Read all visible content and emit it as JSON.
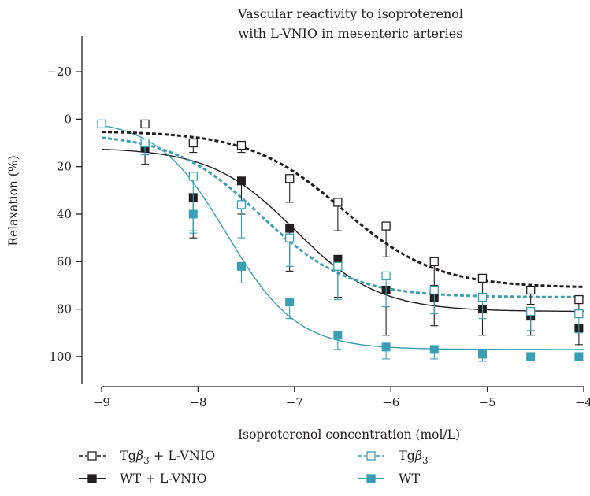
{
  "chart_data": {
    "type": "line",
    "title": [
      "Vascular reactivity to isoproterenol",
      "with L-VNIO in mesenteric arteries"
    ],
    "xlabel": "Isoproterenol concentration (mol/L)",
    "ylabel": "Relaxation (%)",
    "xlim": [
      -9,
      -4
    ],
    "ylim": [
      -25,
      105
    ],
    "y_inverted": true,
    "xticks": [
      -9,
      -8,
      -7,
      -6,
      -5,
      -4
    ],
    "yticks": [
      -20,
      0,
      20,
      40,
      60,
      80,
      100
    ],
    "xtick_labels": [
      "−9",
      "−8",
      "−7",
      "−6",
      "−5",
      "−4"
    ],
    "ytick_labels": [
      "−20",
      "0",
      "20",
      "40",
      "60",
      "80",
      "100"
    ],
    "grid": false,
    "legend_position": "bottom",
    "series": [
      {
        "name": "Tgβ3 + L-VNIO",
        "legend_main": "Tg",
        "legend_greek": "β",
        "legend_sub": "3",
        "legend_tail": " + L-VNIO",
        "color": "#231f20",
        "marker": "open-square",
        "line": "dashed",
        "x": [
          -8.55,
          -8.05,
          -7.55,
          -7.05,
          -6.55,
          -6.05,
          -5.55,
          -5.05,
          -4.55,
          -4.05
        ],
        "y": [
          2,
          10,
          11,
          25,
          35,
          45,
          60,
          67,
          72,
          76
        ],
        "err": [
          0,
          4,
          3,
          10,
          12,
          13,
          10,
          8,
          6,
          6
        ],
        "fit": {
          "bottom": 5,
          "top": 71,
          "logEC50": -6.5,
          "hill": 0.9
        }
      },
      {
        "name": "WT + L-VNIO",
        "color": "#231f20",
        "marker": "filled-square",
        "line": "solid",
        "x": [
          -8.55,
          -8.05,
          -7.55,
          -7.05,
          -6.55,
          -6.05,
          -5.55,
          -5.05,
          -4.55,
          -4.05
        ],
        "y": [
          12,
          33,
          26,
          46,
          59,
          72,
          75,
          80,
          83,
          88
        ],
        "err": [
          7,
          17,
          14,
          18,
          16,
          19,
          12,
          11,
          8,
          7
        ],
        "fit": {
          "bottom": 12,
          "top": 81,
          "logEC50": -7.0,
          "hill": 1.0
        }
      },
      {
        "name": "Tgβ3",
        "legend_main": "Tg",
        "legend_greek": "β",
        "legend_sub": "3",
        "legend_tail": "",
        "color": "#3a9fb3",
        "marker": "open-square",
        "line": "dashed",
        "x": [
          -9.0,
          -8.55,
          -8.05,
          -7.55,
          -7.05,
          -6.55,
          -6.05,
          -5.55,
          -5.05,
          -4.55,
          -4.05
        ],
        "y": [
          2,
          10,
          24,
          36,
          50,
          62,
          66,
          72,
          75,
          81,
          82
        ],
        "err": [
          0,
          5,
          23,
          14,
          12,
          14,
          13,
          10,
          9,
          8,
          8
        ],
        "fit": {
          "bottom": 6,
          "top": 75,
          "logEC50": -7.35,
          "hill": 0.95
        }
      },
      {
        "name": "WT",
        "color": "#3a9fb3",
        "marker": "filled-square",
        "line": "solid",
        "x": [
          -9.0,
          -8.55,
          -8.05,
          -7.55,
          -7.05,
          -6.55,
          -6.05,
          -5.55,
          -5.05,
          -4.55,
          -4.05
        ],
        "y": [
          2,
          10,
          40,
          62,
          77,
          91,
          96,
          97,
          99,
          100,
          100
        ],
        "err": [
          0,
          0,
          8,
          7,
          7,
          6,
          5,
          4,
          3,
          0,
          0
        ],
        "fit": {
          "bottom": 0,
          "top": 97,
          "logEC50": -7.7,
          "hill": 1.2
        }
      }
    ]
  }
}
